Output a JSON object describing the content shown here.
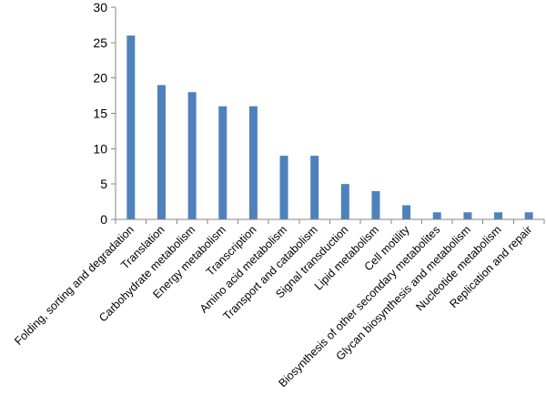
{
  "chart_data": {
    "type": "bar",
    "title": "",
    "xlabel": "",
    "ylabel": "",
    "categories": [
      "Folding, sorting and degradation",
      "Translation",
      "Carbohydrate metabolism",
      "Energy metabolism",
      "Transcription",
      "Amino acid metabolism",
      "Transport and catabolism",
      "Signal transduction",
      "Lipid metabolism",
      "Cell motility",
      "Biosynthesis of other secondary metabolites",
      "Glycan biosynthesis and metabolism",
      "Nucleotide metabolism",
      "Replication and repair"
    ],
    "values": [
      26,
      19,
      18,
      16,
      16,
      9,
      9,
      5,
      4,
      2,
      1,
      1,
      1,
      1
    ],
    "ylim": [
      0,
      30
    ],
    "yticks": [
      0,
      5,
      10,
      15,
      20,
      25,
      30
    ],
    "grid": false,
    "legend": "none",
    "bar_color": "#4f81bd",
    "axis_color": "#868686"
  }
}
